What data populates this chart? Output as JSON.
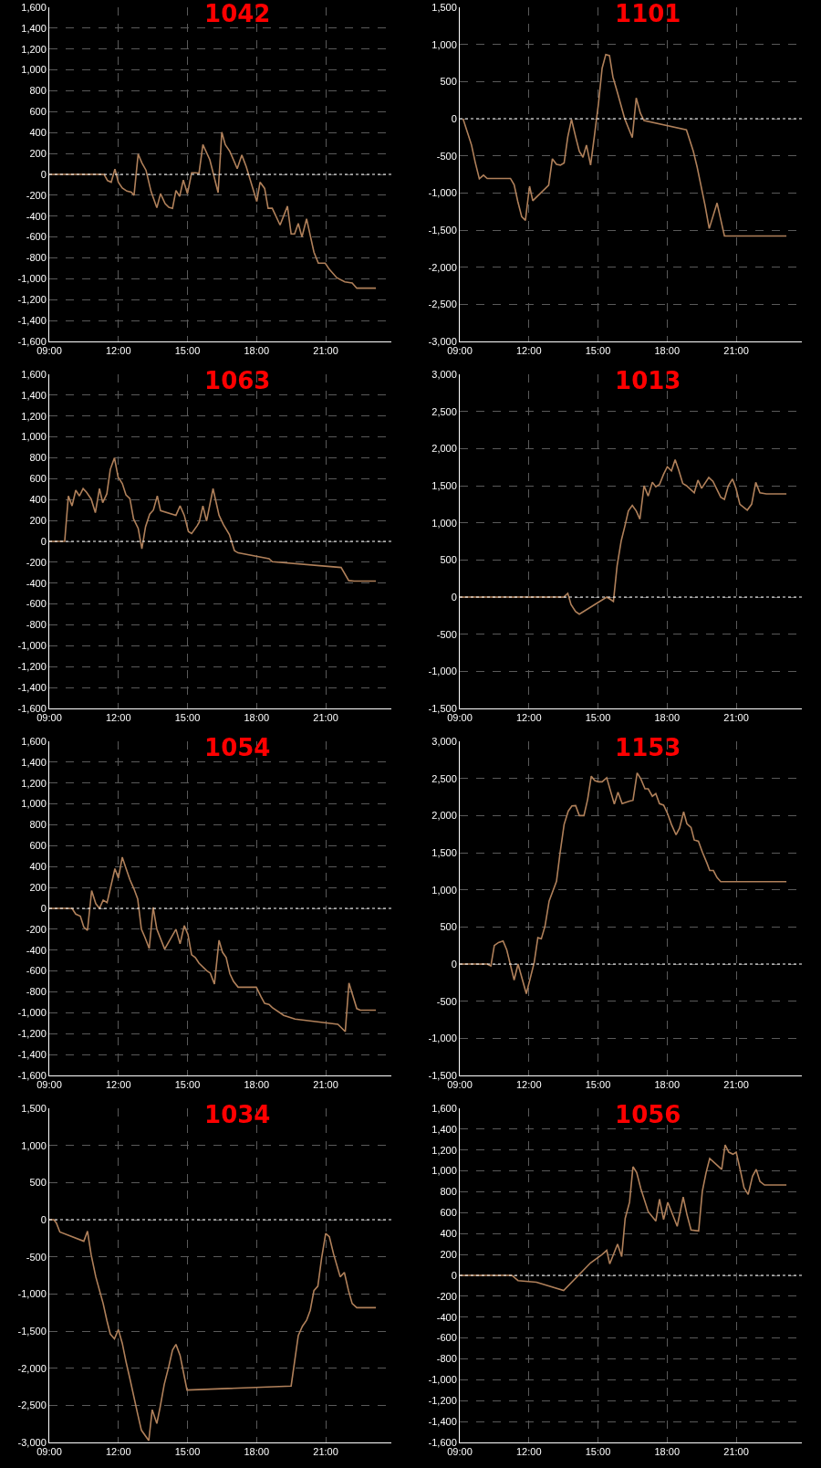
{
  "chart_data": [
    {
      "type": "line",
      "title": "1042",
      "color": "#b0805a",
      "grid": true,
      "xlim": [
        9,
        23.85
      ],
      "ylim": [
        -1600,
        1600
      ],
      "xticks": [
        {
          "value": 9,
          "label": "09:00"
        },
        {
          "value": 12,
          "label": "12:00"
        },
        {
          "value": 15,
          "label": "15:00"
        },
        {
          "value": 18,
          "label": "18:00"
        },
        {
          "value": 21,
          "label": "21:00"
        }
      ],
      "yticks": [
        {
          "value": -1600,
          "label": "-1,600"
        },
        {
          "value": -1400,
          "label": "-1,400"
        },
        {
          "value": -1200,
          "label": "-1,200"
        },
        {
          "value": -1000,
          "label": "-1,000"
        },
        -800,
        -600,
        -400,
        -200,
        0,
        200,
        400,
        600,
        800,
        {
          "value": 1000,
          "label": "1,000"
        },
        {
          "value": 1200,
          "label": "1,200"
        },
        {
          "value": 1400,
          "label": "1,400"
        },
        {
          "value": 1600,
          "label": "1,600"
        }
      ],
      "ref_lines": [
        {
          "axis": "y",
          "value": 0,
          "color": "#ffffff",
          "line_style": "dotted"
        }
      ],
      "x": [
        9,
        11.38,
        11.53,
        11.69,
        11.85,
        12,
        12.17,
        12.37,
        12.56,
        12.68,
        12.86,
        13.02,
        13.2,
        13.42,
        13.67,
        13.83,
        14.03,
        14.19,
        14.35,
        14.5,
        14.66,
        14.82,
        15,
        15.18,
        15.34,
        15.5,
        15.67,
        15.97,
        16.33,
        16.49,
        16.64,
        16.84,
        17.16,
        17.36,
        17.55,
        17.79,
        18.01,
        18.15,
        18.35,
        18.5,
        18.68,
        19.02,
        19.34,
        19.5,
        19.65,
        19.81,
        19.97,
        20.17,
        20.49,
        20.68,
        20.98,
        21.16,
        21.48,
        21.83,
        22.15,
        22.35,
        23.18
      ],
      "values": [
        0,
        0,
        -60,
        -75,
        50,
        -75,
        -130,
        -160,
        -170,
        -200,
        195,
        110,
        40,
        -165,
        -320,
        -185,
        -280,
        -315,
        -325,
        -155,
        -210,
        -55,
        -185,
        15,
        15,
        10,
        285,
        140,
        -175,
        405,
        285,
        220,
        55,
        185,
        75,
        -100,
        -260,
        -75,
        -135,
        -325,
        -325,
        -485,
        -305,
        -570,
        -570,
        -470,
        -600,
        -425,
        -745,
        -850,
        -850,
        -910,
        -990,
        -1030,
        -1040,
        -1090,
        -1090
      ]
    },
    {
      "type": "line",
      "title": "1101",
      "color": "#b0805a",
      "grid": true,
      "xlim": [
        9,
        23.85
      ],
      "ylim": [
        -3000,
        1500
      ],
      "xticks": [
        {
          "value": 9,
          "label": "09:00"
        },
        {
          "value": 12,
          "label": "12:00"
        },
        {
          "value": 15,
          "label": "15:00"
        },
        {
          "value": 18,
          "label": "18:00"
        },
        {
          "value": 21,
          "label": "21:00"
        }
      ],
      "yticks": [
        {
          "value": -3000,
          "label": "-3,000"
        },
        {
          "value": -2500,
          "label": "-2,500"
        },
        {
          "value": -2000,
          "label": "-2,000"
        },
        {
          "value": -1500,
          "label": "-1,500"
        },
        {
          "value": -1000,
          "label": "-1,000"
        },
        -500,
        0,
        500,
        {
          "value": 1000,
          "label": "1,000"
        },
        {
          "value": 1500,
          "label": "1,500"
        }
      ],
      "ref_lines": [
        {
          "axis": "y",
          "value": 0,
          "color": "#ffffff",
          "line_style": "dotted"
        }
      ],
      "x": [
        9.14,
        9.33,
        9.51,
        9.67,
        9.85,
        10.03,
        10.19,
        11.2,
        11.36,
        11.52,
        11.69,
        11.85,
        12.03,
        12.17,
        12.86,
        13.02,
        13.2,
        13.37,
        13.53,
        13.69,
        13.85,
        14.03,
        14.19,
        14.35,
        14.5,
        14.68,
        14.84,
        15.02,
        15.18,
        15.34,
        15.5,
        15.65,
        15.83,
        16.16,
        16.49,
        16.66,
        16.84,
        17,
        18.84,
        19.14,
        19.3,
        19.65,
        19.83,
        20.17,
        20.49,
        23.18
      ],
      "values": [
        0,
        -180,
        -355,
        -585,
        -810,
        -760,
        -805,
        -805,
        -890,
        -1115,
        -1320,
        -1370,
        -910,
        -1105,
        -895,
        -540,
        -615,
        -625,
        -595,
        -245,
        -10,
        -245,
        -440,
        -520,
        -355,
        -625,
        -245,
        200,
        680,
        865,
        850,
        560,
        370,
        0,
        -255,
        280,
        75,
        -25,
        -150,
        -440,
        -645,
        -1170,
        -1480,
        -1135,
        -1580,
        -1580
      ]
    },
    {
      "type": "line",
      "title": "1063",
      "color": "#b0805a",
      "grid": true,
      "xlim": [
        9,
        23.85
      ],
      "ylim": [
        -1600,
        1600
      ],
      "xticks": [
        {
          "value": 9,
          "label": "09:00"
        },
        {
          "value": 12,
          "label": "12:00"
        },
        {
          "value": 15,
          "label": "15:00"
        },
        {
          "value": 18,
          "label": "18:00"
        },
        {
          "value": 21,
          "label": "21:00"
        }
      ],
      "yticks": [
        {
          "value": -1600,
          "label": "-1,600"
        },
        {
          "value": -1400,
          "label": "-1,400"
        },
        {
          "value": -1200,
          "label": "-1,200"
        },
        {
          "value": -1000,
          "label": "-1,000"
        },
        -800,
        -600,
        -400,
        -200,
        0,
        200,
        400,
        600,
        800,
        {
          "value": 1000,
          "label": "1,000"
        },
        {
          "value": 1200,
          "label": "1,200"
        },
        {
          "value": 1400,
          "label": "1,400"
        },
        {
          "value": 1600,
          "label": "1,600"
        }
      ],
      "ref_lines": [
        {
          "axis": "y",
          "value": 0,
          "color": "#ffffff",
          "line_style": "dotted"
        }
      ],
      "x": [
        9,
        9.67,
        9.83,
        9.99,
        10.15,
        10.31,
        10.47,
        10.62,
        10.82,
        11,
        11.18,
        11.32,
        11.5,
        11.65,
        11.83,
        11.99,
        12.17,
        12.33,
        12.5,
        12.66,
        12.86,
        13.02,
        13.18,
        13.36,
        13.52,
        13.69,
        13.83,
        14.5,
        14.68,
        14.86,
        15.04,
        15.18,
        15.42,
        15.51,
        15.67,
        15.83,
        16.11,
        16.37,
        16.56,
        16.82,
        17.04,
        17.2,
        18.54,
        18.68,
        21.67,
        22,
        22.23,
        23.18
      ],
      "values": [
        0,
        0,
        435,
        340,
        490,
        435,
        505,
        470,
        405,
        275,
        505,
        370,
        455,
        690,
        800,
        615,
        555,
        445,
        410,
        215,
        125,
        -70,
        140,
        260,
        300,
        435,
        295,
        250,
        340,
        250,
        95,
        75,
        150,
        185,
        340,
        195,
        505,
        250,
        160,
        65,
        -90,
        -110,
        -165,
        -195,
        -250,
        -375,
        -380,
        -380
      ]
    },
    {
      "type": "line",
      "title": "1013",
      "color": "#b0805a",
      "grid": true,
      "xlim": [
        9,
        23.85
      ],
      "ylim": [
        -1500,
        3000
      ],
      "xticks": [
        {
          "value": 9,
          "label": "09:00"
        },
        {
          "value": 12,
          "label": "12:00"
        },
        {
          "value": 15,
          "label": "15:00"
        },
        {
          "value": 18,
          "label": "18:00"
        },
        {
          "value": 21,
          "label": "21:00"
        }
      ],
      "yticks": [
        {
          "value": -1500,
          "label": "-1,500"
        },
        {
          "value": -1000,
          "label": "-1,000"
        },
        -500,
        0,
        500,
        {
          "value": 1000,
          "label": "1,000"
        },
        {
          "value": 1500,
          "label": "1,500"
        },
        {
          "value": 2000,
          "label": "2,000"
        },
        {
          "value": 2500,
          "label": "2,500"
        },
        {
          "value": 3000,
          "label": "3,000"
        }
      ],
      "ref_lines": [
        {
          "axis": "y",
          "value": 0,
          "color": "#ffffff",
          "line_style": "dotted"
        }
      ],
      "x": [
        9,
        13.51,
        13.69,
        13.83,
        14.03,
        14.19,
        15.38,
        15.51,
        15.67,
        15.83,
        16.01,
        16.16,
        16.32,
        16.49,
        16.66,
        16.82,
        17,
        17.18,
        17.36,
        17.51,
        17.67,
        17.85,
        18.01,
        18.19,
        18.35,
        18.5,
        18.68,
        18.84,
        19.18,
        19.34,
        19.5,
        19.81,
        19.99,
        20.33,
        20.49,
        20.66,
        20.84,
        20.99,
        21.16,
        21.48,
        21.67,
        21.85,
        22.03,
        22.31,
        23.18
      ],
      "values": [
        0,
        0,
        50,
        -100,
        -195,
        -230,
        0,
        -25,
        -60,
        420,
        760,
        945,
        1160,
        1235,
        1160,
        1050,
        1500,
        1360,
        1545,
        1485,
        1515,
        1655,
        1755,
        1700,
        1850,
        1715,
        1530,
        1500,
        1405,
        1575,
        1465,
        1610,
        1560,
        1345,
        1315,
        1500,
        1590,
        1465,
        1250,
        1170,
        1250,
        1545,
        1405,
        1390,
        1390
      ]
    },
    {
      "type": "line",
      "title": "1054",
      "color": "#b0805a",
      "grid": true,
      "xlim": [
        9,
        23.85
      ],
      "ylim": [
        -1600,
        1600
      ],
      "xticks": [
        {
          "value": 9,
          "label": "09:00"
        },
        {
          "value": 12,
          "label": "12:00"
        },
        {
          "value": 15,
          "label": "15:00"
        },
        {
          "value": 18,
          "label": "18:00"
        },
        {
          "value": 21,
          "label": "21:00"
        }
      ],
      "yticks": [
        {
          "value": -1600,
          "label": "-1,600"
        },
        {
          "value": -1400,
          "label": "-1,400"
        },
        {
          "value": -1200,
          "label": "-1,200"
        },
        {
          "value": -1000,
          "label": "-1,000"
        },
        -800,
        -600,
        -400,
        -200,
        0,
        200,
        400,
        600,
        800,
        {
          "value": 1000,
          "label": "1,000"
        },
        {
          "value": 1200,
          "label": "1,200"
        },
        {
          "value": 1400,
          "label": "1,400"
        },
        {
          "value": 1600,
          "label": "1,600"
        }
      ],
      "ref_lines": [
        {
          "axis": "y",
          "value": 0,
          "color": "#ffffff",
          "line_style": "dotted"
        }
      ],
      "x": [
        9,
        9.99,
        10.15,
        10.35,
        10.5,
        10.66,
        10.84,
        11.02,
        11.18,
        11.34,
        11.51,
        11.85,
        12,
        12.17,
        12.33,
        12.5,
        12.68,
        12.84,
        13,
        13.15,
        13.34,
        13.51,
        13.67,
        14.01,
        14.5,
        14.68,
        14.86,
        15.02,
        15.18,
        15.34,
        15.5,
        15.83,
        15.99,
        16.17,
        16.37,
        16.52,
        16.68,
        16.84,
        17,
        17.2,
        17.99,
        18.19,
        18.35,
        18.54,
        18.68,
        19.18,
        19.67,
        21.53,
        21.85,
        22.01,
        22.35,
        22.5,
        23.18
      ],
      "values": [
        0,
        0,
        -55,
        -75,
        -180,
        -210,
        170,
        45,
        0,
        80,
        55,
        380,
        290,
        490,
        385,
        275,
        185,
        90,
        -200,
        -275,
        -385,
        10,
        -200,
        -390,
        -200,
        -340,
        -165,
        -250,
        -445,
        -470,
        -525,
        -595,
        -620,
        -725,
        -305,
        -420,
        -470,
        -625,
        -700,
        -755,
        -755,
        -845,
        -910,
        -920,
        -950,
        -1025,
        -1060,
        -1110,
        -1180,
        -715,
        -960,
        -975,
        -975
      ]
    },
    {
      "type": "line",
      "title": "1153",
      "color": "#b0805a",
      "grid": true,
      "xlim": [
        9,
        23.85
      ],
      "ylim": [
        -1500,
        3000
      ],
      "xticks": [
        {
          "value": 9,
          "label": "09:00"
        },
        {
          "value": 12,
          "label": "12:00"
        },
        {
          "value": 15,
          "label": "15:00"
        },
        {
          "value": 18,
          "label": "18:00"
        },
        {
          "value": 21,
          "label": "21:00"
        }
      ],
      "yticks": [
        {
          "value": -1500,
          "label": "-1,500"
        },
        {
          "value": -1000,
          "label": "-1,000"
        },
        -500,
        0,
        500,
        {
          "value": 1000,
          "label": "1,000"
        },
        {
          "value": 1500,
          "label": "1,500"
        },
        {
          "value": 2000,
          "label": "2,000"
        },
        {
          "value": 2500,
          "label": "2,500"
        },
        {
          "value": 3000,
          "label": "3,000"
        }
      ],
      "ref_lines": [
        {
          "axis": "y",
          "value": 0,
          "color": "#ffffff",
          "line_style": "dotted"
        }
      ],
      "x": [
        9,
        10.19,
        10.35,
        10.5,
        10.68,
        10.88,
        11.04,
        11.36,
        11.53,
        11.89,
        12.23,
        12.39,
        12.54,
        12.7,
        12.88,
        13.2,
        13.35,
        13.53,
        13.71,
        13.87,
        14.03,
        14.19,
        14.39,
        14.55,
        14.71,
        14.86,
        15.02,
        15.18,
        15.38,
        15.55,
        15.71,
        15.87,
        16.05,
        16.37,
        16.52,
        16.7,
        16.86,
        17.04,
        17.18,
        17.36,
        17.51,
        17.67,
        17.85,
        18.03,
        18.19,
        18.39,
        18.54,
        18.72,
        18.86,
        19.04,
        19.18,
        19.36,
        19.53,
        19.73,
        19.85,
        20.01,
        20.17,
        20.33,
        23.18
      ],
      "values": [
        0,
        0,
        -25,
        250,
        290,
        310,
        190,
        -215,
        0,
        -400,
        20,
        355,
        340,
        510,
        850,
        1115,
        1485,
        1880,
        2060,
        2130,
        2135,
        2000,
        2000,
        2215,
        2530,
        2470,
        2455,
        2455,
        2510,
        2325,
        2155,
        2315,
        2160,
        2195,
        2205,
        2575,
        2495,
        2360,
        2360,
        2260,
        2295,
        2160,
        2140,
        2020,
        1880,
        1740,
        1830,
        2050,
        1890,
        1840,
        1670,
        1655,
        1510,
        1360,
        1260,
        1260,
        1165,
        1110,
        1110
      ]
    },
    {
      "type": "line",
      "title": "1034",
      "color": "#b0805a",
      "grid": true,
      "xlim": [
        9,
        23.85
      ],
      "ylim": [
        -3000,
        1500
      ],
      "xticks": [
        {
          "value": 9,
          "label": "09:00"
        },
        {
          "value": 12,
          "label": "12:00"
        },
        {
          "value": 15,
          "label": "15:00"
        },
        {
          "value": 18,
          "label": "18:00"
        },
        {
          "value": 21,
          "label": "21:00"
        }
      ],
      "yticks": [
        {
          "value": -3000,
          "label": "-3,000"
        },
        {
          "value": -2500,
          "label": "-2,500"
        },
        {
          "value": -2000,
          "label": "-2,000"
        },
        {
          "value": -1500,
          "label": "-1,500"
        },
        {
          "value": -1000,
          "label": "-1,000"
        },
        -500,
        0,
        500,
        {
          "value": 1000,
          "label": "1,000"
        },
        {
          "value": 1500,
          "label": "1,500"
        }
      ],
      "ref_lines": [
        {
          "axis": "y",
          "value": 0,
          "color": "#ffffff",
          "line_style": "dotted"
        }
      ],
      "x": [
        9,
        9.2,
        9.31,
        9.46,
        10.5,
        10.66,
        10.82,
        11.02,
        11.34,
        11.5,
        11.65,
        11.83,
        12,
        12.17,
        12.33,
        12.5,
        12.84,
        13,
        13.32,
        13.47,
        13.67,
        13.81,
        13.99,
        14.19,
        14.35,
        14.5,
        14.68,
        14.98,
        19.5,
        19.81,
        19.99,
        20.17,
        20.33,
        20.49,
        20.66,
        20.82,
        21,
        21.16,
        21.34,
        21.63,
        21.81,
        21.99,
        22.15,
        22.35,
        23.18
      ],
      "values": [
        0,
        0,
        -45,
        -165,
        -290,
        -155,
        -475,
        -770,
        -1130,
        -1355,
        -1540,
        -1605,
        -1480,
        -1665,
        -1910,
        -2140,
        -2620,
        -2835,
        -2975,
        -2560,
        -2745,
        -2530,
        -2220,
        -1975,
        -1755,
        -1680,
        -1830,
        -2295,
        -2240,
        -1560,
        -1435,
        -1355,
        -1220,
        -955,
        -895,
        -525,
        -185,
        -230,
        -460,
        -770,
        -710,
        -955,
        -1130,
        -1185,
        -1185
      ]
    },
    {
      "type": "line",
      "title": "1056",
      "color": "#b0805a",
      "grid": true,
      "xlim": [
        9,
        23.85
      ],
      "ylim": [
        -1600,
        1600
      ],
      "xticks": [
        {
          "value": 9,
          "label": "09:00"
        },
        {
          "value": 12,
          "label": "12:00"
        },
        {
          "value": 15,
          "label": "15:00"
        },
        {
          "value": 18,
          "label": "18:00"
        },
        {
          "value": 21,
          "label": "21:00"
        }
      ],
      "yticks": [
        {
          "value": -1600,
          "label": "-1,600"
        },
        {
          "value": -1400,
          "label": "-1,400"
        },
        {
          "value": -1200,
          "label": "-1,200"
        },
        {
          "value": -1000,
          "label": "-1,000"
        },
        -800,
        -600,
        -400,
        -200,
        0,
        200,
        400,
        600,
        800,
        {
          "value": 1000,
          "label": "1,000"
        },
        {
          "value": 1200,
          "label": "1,200"
        },
        {
          "value": 1400,
          "label": "1,400"
        },
        {
          "value": 1600,
          "label": "1,600"
        }
      ],
      "ref_lines": [
        {
          "axis": "y",
          "value": 0,
          "color": "#ffffff",
          "line_style": "dotted"
        }
      ],
      "x": [
        9,
        11.26,
        11.53,
        12.33,
        13.51,
        14.68,
        15.18,
        15.38,
        15.51,
        15.85,
        16.03,
        16.18,
        16.37,
        16.52,
        16.68,
        16.86,
        17.18,
        17.51,
        17.67,
        17.85,
        18.03,
        18.44,
        18.7,
        18.86,
        19.04,
        19.37,
        19.53,
        19.69,
        19.85,
        20.37,
        20.52,
        20.68,
        20.86,
        21,
        21.18,
        21.34,
        21.52,
        21.71,
        21.87,
        22.03,
        22.23,
        23.18
      ],
      "values": [
        0,
        0,
        -50,
        -65,
        -145,
        120,
        200,
        240,
        110,
        300,
        180,
        545,
        700,
        1040,
        985,
        830,
        610,
        520,
        730,
        535,
        700,
        470,
        750,
        585,
        435,
        425,
        805,
        980,
        1120,
        1015,
        1250,
        1180,
        1160,
        1180,
        1005,
        840,
        775,
        950,
        1015,
        900,
        865,
        865
      ]
    }
  ]
}
